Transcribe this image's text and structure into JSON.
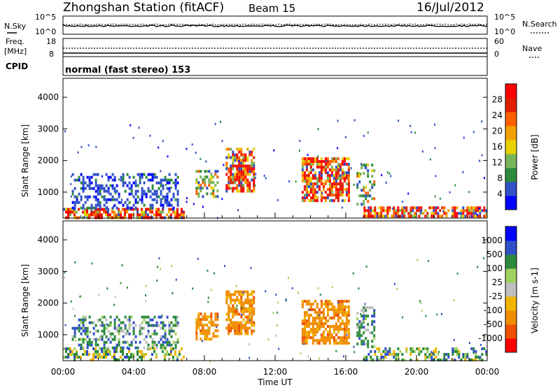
{
  "header": {
    "station": "Zhongshan Station (fitACF)",
    "beam": "Beam 15",
    "date": "16/Jul/2012"
  },
  "noise_panel": {
    "left_label": "N.Sky",
    "right_label": "N.Search",
    "left_top": "10^5",
    "left_bottom": "10^0",
    "right_top": "10^5",
    "right_bottom": "10^0"
  },
  "freq_panel": {
    "label_line1": "Freq.",
    "label_line2": "[MHz]",
    "right_label": "Nave",
    "freq_top": "18",
    "freq_bottom": "8",
    "nave_top": "60",
    "nave_bottom": "0"
  },
  "cpid_panel": {
    "label": "CPID",
    "mode": "normal (fast stereo) 153"
  },
  "x_axis": {
    "label": "Time UT",
    "ticks": [
      "00:00",
      "04:00",
      "08:00",
      "12:00",
      "16:00",
      "20:00",
      "00:00"
    ]
  },
  "colors": {
    "power_scale": [
      "#0000ff",
      "#3050c8",
      "#2c8a3c",
      "#78b45a",
      "#e8d200",
      "#f0a000",
      "#ff6000",
      "#e02000",
      "#ff0000"
    ],
    "velocity_scale": [
      "#ff0000",
      "#f05000",
      "#f08c00",
      "#f0b400",
      "#bebebe",
      "#a0d060",
      "#2c8a3c",
      "#3050c8",
      "#0000ff"
    ]
  },
  "chart_data": [
    {
      "type": "heatmap",
      "title": "Power",
      "xlabel": "Time UT",
      "ylabel": "Slant Range [km]",
      "xlim_hours": [
        0,
        24
      ],
      "ylim": [
        180,
        4600
      ],
      "yticks": [
        "1000",
        "2000",
        "3000",
        "4000"
      ],
      "colorbar_label": "Power [dB]",
      "colorbar_ticks": [
        "4",
        "8",
        "12",
        "16",
        "20",
        "24",
        "28"
      ],
      "colorbar_range": [
        0,
        32
      ],
      "scatter_regions": [
        {
          "t0": 0.0,
          "t1": 6.8,
          "r0": 200,
          "r1": 500,
          "level": "high"
        },
        {
          "t0": 17.0,
          "t1": 24.0,
          "r0": 200,
          "r1": 550,
          "level": "high"
        },
        {
          "t0": 0.5,
          "t1": 6.5,
          "r0": 500,
          "r1": 1600,
          "level": "low"
        },
        {
          "t0": 7.5,
          "t1": 8.8,
          "r0": 900,
          "r1": 1700,
          "level": "mid"
        },
        {
          "t0": 9.2,
          "t1": 10.8,
          "r0": 1000,
          "r1": 2400,
          "level": "high"
        },
        {
          "t0": 13.5,
          "t1": 16.2,
          "r0": 700,
          "r1": 2100,
          "level": "high"
        },
        {
          "t0": 16.6,
          "t1": 17.6,
          "r0": 600,
          "r1": 1900,
          "level": "mid"
        }
      ]
    },
    {
      "type": "heatmap",
      "title": "Velocity",
      "xlabel": "Time UT",
      "ylabel": "Slant Range [km]",
      "xlim_hours": [
        0,
        24
      ],
      "ylim": [
        180,
        4600
      ],
      "yticks": [
        "1000",
        "2000",
        "3000",
        "4000"
      ],
      "colorbar_label": "Velocity [m s-1]",
      "colorbar_ticks": [
        "1000",
        "500",
        "100",
        "25",
        "-25",
        "-100",
        "-500",
        "-1000"
      ],
      "scatter_regions": [
        {
          "t0": 0.0,
          "t1": 6.8,
          "r0": 200,
          "r1": 600,
          "velocity": "low"
        },
        {
          "t0": 17.0,
          "t1": 24.0,
          "r0": 200,
          "r1": 600,
          "velocity": "low"
        },
        {
          "t0": 0.5,
          "t1": 6.5,
          "r0": 600,
          "r1": 1600,
          "velocity": "positive"
        },
        {
          "t0": 7.5,
          "t1": 8.8,
          "r0": 900,
          "r1": 1700,
          "velocity": "negative"
        },
        {
          "t0": 9.2,
          "t1": 10.8,
          "r0": 1000,
          "r1": 2400,
          "velocity": "negative"
        },
        {
          "t0": 13.5,
          "t1": 16.2,
          "r0": 700,
          "r1": 2100,
          "velocity": "negative"
        },
        {
          "t0": 16.6,
          "t1": 17.6,
          "r0": 600,
          "r1": 1900,
          "velocity": "positive"
        }
      ]
    }
  ]
}
